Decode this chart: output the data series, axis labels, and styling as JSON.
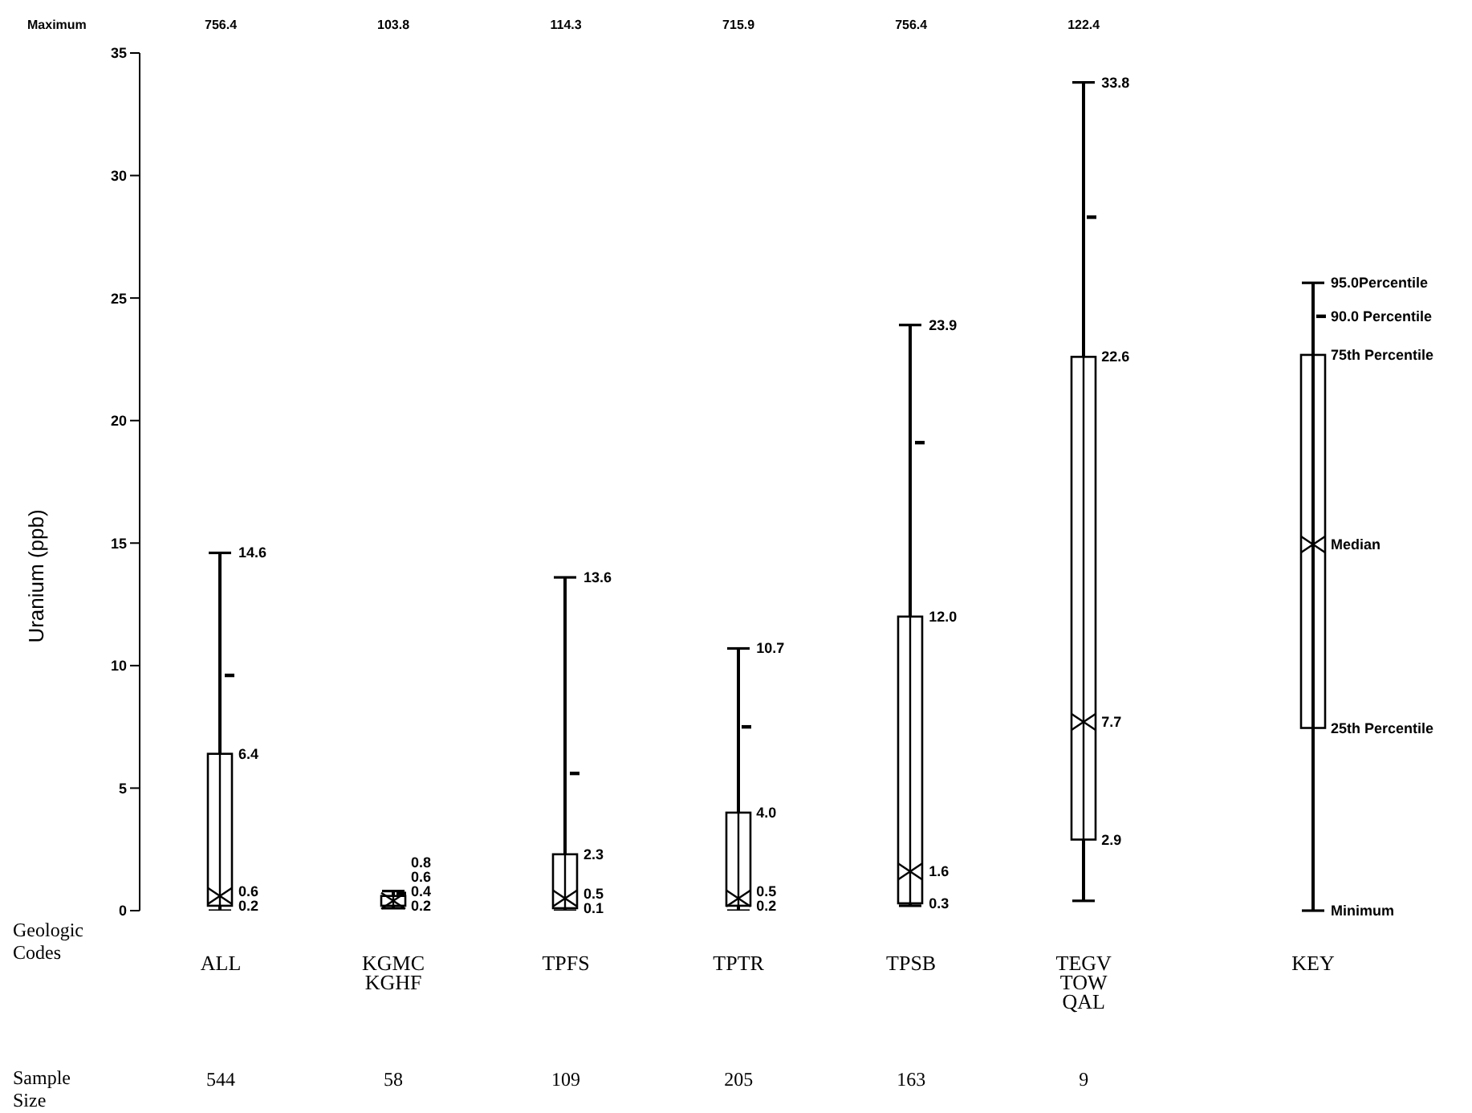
{
  "chart_data": {
    "type": "box",
    "ylabel": "Uranium (ppb)",
    "color": "#000000",
    "categories": [
      "ALL",
      "KGMC\nKGHF",
      "TPFS",
      "TPTR",
      "TPSB",
      "TEGV\nTOW\nQAL"
    ],
    "boxes": [
      {
        "low": 0.0,
        "q1": 0.2,
        "median": 0.6,
        "q3": 6.4,
        "high": 14.6
      },
      {
        "low": 0.1,
        "q1": 0.2,
        "median": 0.4,
        "q3": 0.6,
        "high": 0.8
      },
      {
        "low": 0.0,
        "q1": 0.1,
        "median": 0.5,
        "q3": 2.3,
        "high": 13.6
      },
      {
        "low": 0.0,
        "q1": 0.2,
        "median": 0.5,
        "q3": 4.0,
        "high": 10.7
      },
      {
        "low": 0.2,
        "q1": 0.3,
        "median": 1.6,
        "q3": 12.0,
        "high": 23.9
      },
      {
        "low": 0.4,
        "q1": 2.9,
        "median": 7.7,
        "q3": 22.6,
        "high": 33.8
      }
    ],
    "series": [
      {
        "type": "scatter",
        "name": "90.0 Percentile",
        "color": "#000000",
        "x": [
          "ALL",
          "KGMC\nKGHF",
          "TPFS",
          "TPTR",
          "TPSB",
          "TEGV\nTOW\nQAL"
        ],
        "values": [
          9.6,
          0.7,
          5.6,
          7.5,
          19.1,
          28.3
        ]
      }
    ],
    "ylim": [
      0,
      35
    ],
    "yticks": [
      0,
      5,
      10,
      15,
      20,
      25,
      30,
      35
    ],
    "legend": "right",
    "legend_title": "KEY",
    "annotations": [
      "Maximum",
      "756.4",
      "103.8",
      "114.3",
      "715.9",
      "756.4",
      "122.4",
      "Geologic\nCodes",
      "Sample\nSize",
      "544",
      "58",
      "109",
      "205",
      "163",
      "9",
      "95.0Percentile",
      "75th Percentile",
      "Median",
      "25th Percentile",
      "Minimum",
      {
        "text": "14.6",
        "x": "ALL",
        "y": 14.6
      },
      {
        "text": "6.4",
        "x": "ALL",
        "y": 6.4
      },
      {
        "text": "0.6",
        "x": "ALL",
        "y": 0.6
      },
      {
        "text": "0.2",
        "x": "ALL",
        "y": 0.2
      },
      {
        "text": "0.8",
        "x": "KGMC\nKGHF",
        "y": 0.8
      },
      {
        "text": "0.6",
        "x": "KGMC\nKGHF",
        "y": 0.6
      },
      {
        "text": "0.4",
        "x": "KGMC\nKGHF",
        "y": 0.4
      },
      {
        "text": "0.2",
        "x": "KGMC\nKGHF",
        "y": 0.2
      },
      {
        "text": "13.6",
        "x": "TPFS",
        "y": 13.6
      },
      {
        "text": "2.3",
        "x": "TPFS",
        "y": 2.3
      },
      {
        "text": "0.5",
        "x": "TPFS",
        "y": 0.5
      },
      {
        "text": "0.1",
        "x": "TPFS",
        "y": 0.1
      },
      {
        "text": "10.7",
        "x": "TPTR",
        "y": 10.7
      },
      {
        "text": "4.0",
        "x": "TPTR",
        "y": 4.0
      },
      {
        "text": "0.5",
        "x": "TPTR",
        "y": 0.5
      },
      {
        "text": "0.2",
        "x": "TPTR",
        "y": 0.2
      },
      {
        "text": "23.9",
        "x": "TPSB",
        "y": 23.9
      },
      {
        "text": "12.0",
        "x": "TPSB",
        "y": 12.0
      },
      {
        "text": "1.6",
        "x": "TPSB",
        "y": 1.6
      },
      {
        "text": "0.3",
        "x": "TPSB",
        "y": 0.3
      },
      {
        "text": "33.8",
        "x": "TEGV\nTOW\nQAL",
        "y": 33.8
      },
      {
        "text": "22.6",
        "x": "TEGV\nTOW\nQAL",
        "y": 22.6
      },
      {
        "text": "7.7",
        "x": "TEGV\nTOW\nQAL",
        "y": 7.7
      },
      {
        "text": "2.9",
        "x": "TEGV\nTOW\nQAL",
        "y": 2.9
      }
    ]
  }
}
